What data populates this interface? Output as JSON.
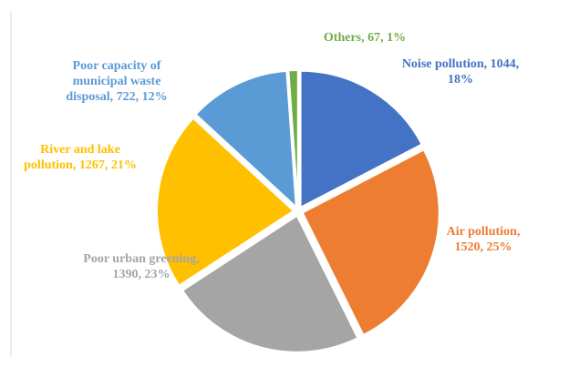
{
  "chart_data": {
    "type": "pie",
    "values": [
      1044,
      1520,
      1390,
      1267,
      722,
      67
    ],
    "value_labels": [
      "Noise pollution, 1044, 18%",
      "Air pollution, 1520, 25%",
      "Poor urban greening, 1390, 23%",
      "River and lake pollution, 1267, 21%",
      "Poor capacity of municipal waste disposal, 722, 12%",
      "Others, 67, 1%"
    ],
    "colors": [
      "#4472c4",
      "#ed7d31",
      "#a5a5a5",
      "#ffc000",
      "#5b9bd5",
      "#70ad47"
    ]
  }
}
